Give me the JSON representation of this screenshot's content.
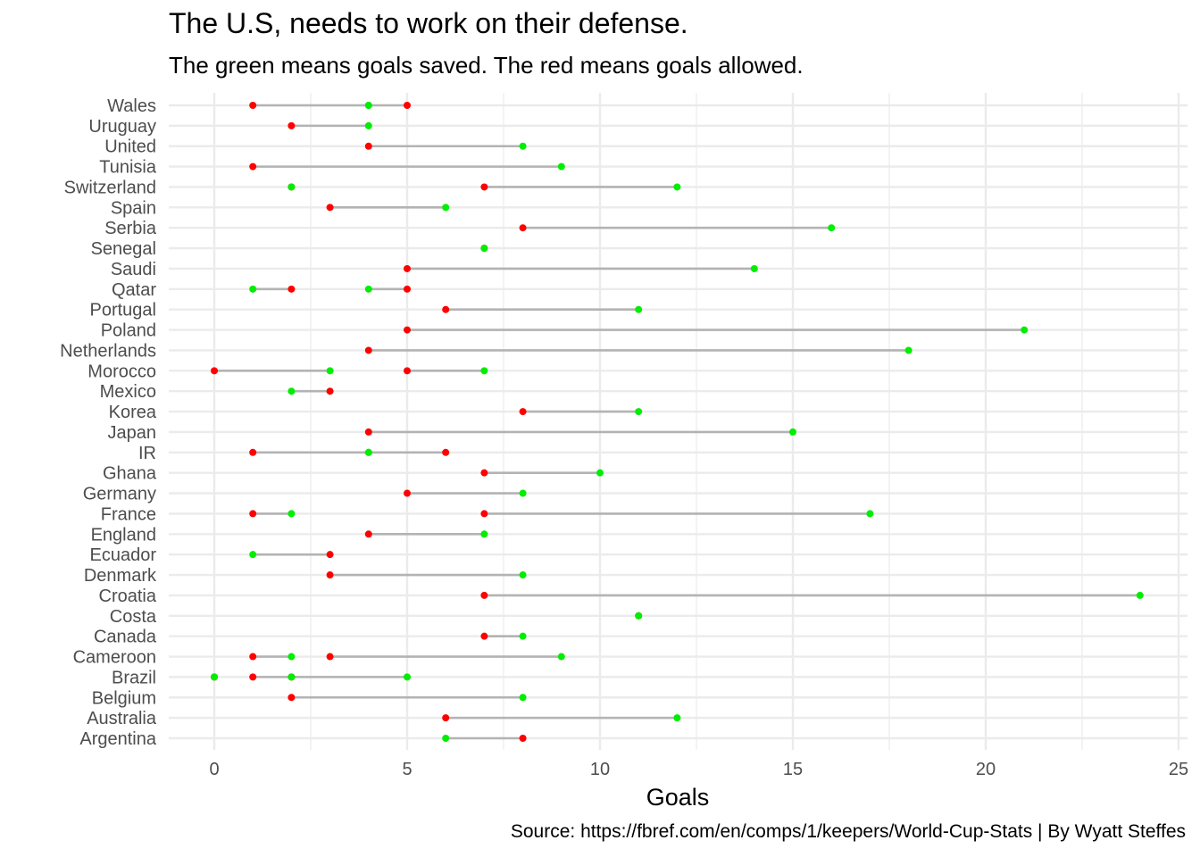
{
  "chart_data": {
    "type": "dumbbell",
    "title": "The U.S, needs to work on their defense.",
    "subtitle": "The green means goals saved. The red means goals allowed.",
    "caption": "Source: https://fbref.com/en/comps/1/keepers/World-Cup-Stats | By Wyatt Steffes",
    "xlabel": "Goals",
    "ylabel": "",
    "xlim": [
      -1,
      25.2
    ],
    "xticks": [
      0,
      5,
      10,
      15,
      20,
      25
    ],
    "grid": true,
    "colors": {
      "saved": "#00ee00",
      "allowed": "#ff0000",
      "segment": "#b3b3b3",
      "grid": "#ebebeb"
    },
    "series_meaning": {
      "saved": "goals saved (green)",
      "allowed": "goals allowed (red)"
    },
    "categories": [
      "Wales",
      "Uruguay",
      "United",
      "Tunisia",
      "Switzerland",
      "Spain",
      "Serbia",
      "Senegal",
      "Saudi",
      "Qatar",
      "Portugal",
      "Poland",
      "Netherlands",
      "Morocco",
      "Mexico",
      "Korea",
      "Japan",
      "IR",
      "Ghana",
      "Germany",
      "France",
      "England",
      "Ecuador",
      "Denmark",
      "Croatia",
      "Costa",
      "Canada",
      "Cameroon",
      "Brazil",
      "Belgium",
      "Australia",
      "Argentina"
    ],
    "pairs": [
      {
        "country": "Wales",
        "saved": 4,
        "allowed": 1
      },
      {
        "country": "Wales",
        "saved": 4,
        "allowed": 5
      },
      {
        "country": "Uruguay",
        "saved": 4,
        "allowed": 2
      },
      {
        "country": "United",
        "saved": 8,
        "allowed": 4
      },
      {
        "country": "Tunisia",
        "saved": 9,
        "allowed": 1
      },
      {
        "country": "Switzerland",
        "saved": 2,
        "allowed": 2
      },
      {
        "country": "Switzerland",
        "saved": 12,
        "allowed": 7
      },
      {
        "country": "Spain",
        "saved": 6,
        "allowed": 3
      },
      {
        "country": "Serbia",
        "saved": 16,
        "allowed": 8
      },
      {
        "country": "Senegal",
        "saved": 7,
        "allowed": 7
      },
      {
        "country": "Saudi",
        "saved": 14,
        "allowed": 5
      },
      {
        "country": "Qatar",
        "saved": 1,
        "allowed": 2
      },
      {
        "country": "Qatar",
        "saved": 4,
        "allowed": 5
      },
      {
        "country": "Portugal",
        "saved": 11,
        "allowed": 6
      },
      {
        "country": "Poland",
        "saved": 21,
        "allowed": 5
      },
      {
        "country": "Netherlands",
        "saved": 18,
        "allowed": 4
      },
      {
        "country": "Morocco",
        "saved": 3,
        "allowed": 0
      },
      {
        "country": "Morocco",
        "saved": 7,
        "allowed": 5
      },
      {
        "country": "Mexico",
        "saved": 2,
        "allowed": 3
      },
      {
        "country": "Korea",
        "saved": 11,
        "allowed": 8
      },
      {
        "country": "Japan",
        "saved": 15,
        "allowed": 4
      },
      {
        "country": "IR",
        "saved": 4,
        "allowed": 1
      },
      {
        "country": "IR",
        "saved": 4,
        "allowed": 6
      },
      {
        "country": "Ghana",
        "saved": 10,
        "allowed": 7
      },
      {
        "country": "Germany",
        "saved": 8,
        "allowed": 5
      },
      {
        "country": "France",
        "saved": 2,
        "allowed": 1
      },
      {
        "country": "France",
        "saved": 17,
        "allowed": 7
      },
      {
        "country": "England",
        "saved": 7,
        "allowed": 4
      },
      {
        "country": "Ecuador",
        "saved": 1,
        "allowed": 3
      },
      {
        "country": "Denmark",
        "saved": 8,
        "allowed": 3
      },
      {
        "country": "Croatia",
        "saved": 24,
        "allowed": 7
      },
      {
        "country": "Costa",
        "saved": 11,
        "allowed": 11
      },
      {
        "country": "Canada",
        "saved": 8,
        "allowed": 7
      },
      {
        "country": "Cameroon",
        "saved": 2,
        "allowed": 1
      },
      {
        "country": "Cameroon",
        "saved": 9,
        "allowed": 3
      },
      {
        "country": "Brazil",
        "saved": 0,
        "allowed": 0
      },
      {
        "country": "Brazil",
        "saved": 2,
        "allowed": 1
      },
      {
        "country": "Brazil",
        "saved": 5,
        "allowed": 2
      },
      {
        "country": "Belgium",
        "saved": 8,
        "allowed": 2
      },
      {
        "country": "Australia",
        "saved": 12,
        "allowed": 6
      },
      {
        "country": "Argentina",
        "saved": 6,
        "allowed": 8
      }
    ]
  }
}
